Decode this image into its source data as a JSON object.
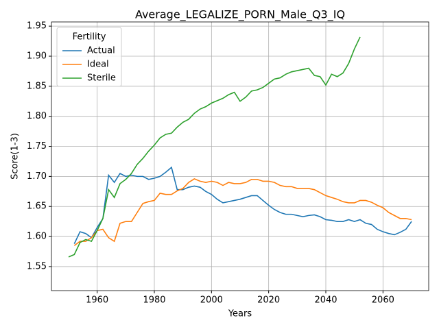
{
  "chart_data": {
    "type": "line",
    "title": "Average_LEGALIZE_PORN_Male_Q3_IQ",
    "x_label": "Years",
    "y_label": "Score(1-3)",
    "x": [
      1950,
      1952,
      1954,
      1956,
      1958,
      1960,
      1962,
      1964,
      1966,
      1968,
      1970,
      1972,
      1974,
      1976,
      1978,
      1980,
      1982,
      1984,
      1986,
      1988,
      1990,
      1992,
      1994,
      1996,
      1998,
      2000,
      2002,
      2004,
      2006,
      2008,
      2010,
      2012,
      2014,
      2016,
      2018,
      2020,
      2022,
      2024,
      2026,
      2028,
      2030,
      2032,
      2034,
      2036,
      2038,
      2040,
      2042,
      2044,
      2046,
      2048,
      2050,
      2052,
      2054,
      2056,
      2058,
      2060,
      2062,
      2064,
      2066,
      2068,
      2070
    ],
    "series": [
      {
        "name": "Actual",
        "color": "#1f77b4",
        "values": [
          null,
          1.588,
          1.608,
          1.605,
          1.598,
          1.615,
          1.63,
          1.702,
          1.69,
          1.705,
          1.7,
          1.702,
          1.7,
          1.7,
          1.695,
          1.697,
          1.7,
          1.707,
          1.715,
          1.678,
          1.678,
          1.682,
          1.684,
          1.682,
          1.675,
          1.67,
          1.662,
          1.656,
          1.658,
          1.66,
          1.662,
          1.665,
          1.668,
          1.668,
          1.66,
          1.652,
          1.645,
          1.64,
          1.637,
          1.637,
          1.635,
          1.633,
          1.635,
          1.636,
          1.633,
          1.628,
          1.627,
          1.625,
          1.625,
          1.628,
          1.625,
          1.628,
          1.622,
          1.62,
          1.612,
          1.608,
          1.605,
          1.603,
          1.607,
          1.612,
          1.625
        ]
      },
      {
        "name": "Ideal",
        "color": "#ff7f0e",
        "values": [
          null,
          1.585,
          1.592,
          1.592,
          1.598,
          1.61,
          1.612,
          1.598,
          1.592,
          1.622,
          1.625,
          1.625,
          1.64,
          1.655,
          1.658,
          1.66,
          1.672,
          1.67,
          1.67,
          1.676,
          1.68,
          1.69,
          1.696,
          1.692,
          1.69,
          1.692,
          1.69,
          1.685,
          1.69,
          1.688,
          1.688,
          1.69,
          1.695,
          1.695,
          1.692,
          1.692,
          1.69,
          1.685,
          1.683,
          1.683,
          1.68,
          1.68,
          1.68,
          1.678,
          1.673,
          1.668,
          1.665,
          1.662,
          1.658,
          1.656,
          1.656,
          1.66,
          1.66,
          1.657,
          1.652,
          1.648,
          1.64,
          1.635,
          1.63,
          1.63,
          1.628
        ]
      },
      {
        "name": "Sterile",
        "color": "#2ca02c",
        "values": [
          1.566,
          1.57,
          1.59,
          1.595,
          1.592,
          1.61,
          1.63,
          1.678,
          1.665,
          1.688,
          1.695,
          1.705,
          1.72,
          1.73,
          1.742,
          1.752,
          1.764,
          1.77,
          1.772,
          1.782,
          1.79,
          1.795,
          1.805,
          1.812,
          1.816,
          1.822,
          1.826,
          1.83,
          1.836,
          1.84,
          1.825,
          1.832,
          1.842,
          1.844,
          1.848,
          1.855,
          1.862,
          1.864,
          1.87,
          1.874,
          1.876,
          1.878,
          1.88,
          1.868,
          1.866,
          1.852,
          1.87,
          1.866,
          1.872,
          1.888,
          1.912,
          1.932,
          null,
          null,
          null,
          null,
          null,
          null,
          null,
          null,
          null
        ]
      }
    ],
    "legend_title": "Fertility",
    "legend": "upper left",
    "grid": true,
    "xlim": [
      1944,
      2076
    ],
    "xticks": [
      1960,
      1980,
      2000,
      2020,
      2040,
      2060
    ],
    "ylim": [
      1.51,
      1.957
    ],
    "yticks": [
      1.55,
      {
        "value": 1.6,
        "label": "1.60"
      },
      1.65,
      {
        "value": 1.7,
        "label": "1.70"
      },
      1.75,
      {
        "value": 1.8,
        "label": "1.80"
      },
      1.85,
      {
        "value": 1.9,
        "label": "1.90"
      },
      1.95
    ]
  }
}
